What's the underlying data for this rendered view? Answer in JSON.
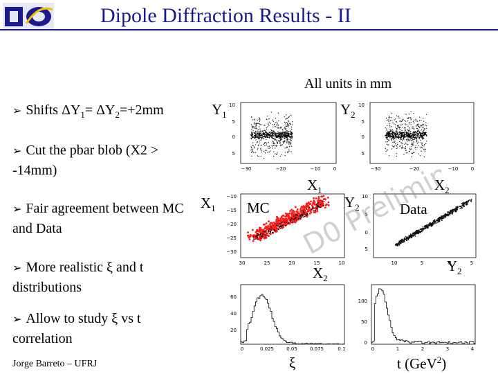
{
  "title": "Dipole Diffraction  Results - II",
  "units_note": "All units in mm",
  "bullets": {
    "b1_pre": "Shifts ΔY",
    "b1_s1": "1",
    "b1_mid": "= ΔY",
    "b1_s2": "2",
    "b1_post": "=+2mm",
    "b2": "Cut the pbar blob (X2 > -14mm)",
    "b3": "Fair agreement between MC and Data",
    "b4": "More realistic ξ and t distributions",
    "b5": "Allow to study ξ vs t correlation"
  },
  "plot_labels": {
    "y1_base": "Y",
    "y1_sub": "1",
    "y2_base": "Y",
    "y2_sub": "2",
    "x1_base": "X",
    "x1_sub": "1",
    "x1b_base": "X",
    "x1b_sub": "1",
    "x2_base": "X",
    "x2_sub": "2",
    "x2b_base": "X",
    "x2b_sub": "2",
    "y2b_base": "Y",
    "y2b_sub": "2",
    "y2c_base": "Y",
    "y2c_sub": "2",
    "mc": "MC",
    "data": "Data",
    "xi": "ξ",
    "t_base": "t (GeV",
    "t_sup": "2",
    "t_end": ")"
  },
  "watermark": "D0 Preliminary",
  "footer": "Jorge Barreto – UFRJ",
  "colors": {
    "title": "#1a1a8c",
    "mc": "#ff1a1a"
  },
  "ticks": {
    "p1_y": [
      "10",
      "5",
      "0",
      "5"
    ],
    "p1_x": [
      "−30",
      "−20",
      "−10",
      "0"
    ],
    "p2_y": [
      "10",
      "5",
      "0",
      "5"
    ],
    "p2_x": [
      "−30",
      "−20",
      "−10",
      "0"
    ],
    "p3_y": [
      "−10",
      "−15",
      "−20",
      "−25",
      "−30"
    ],
    "p3_x": [
      "30",
      "25",
      "20",
      "15",
      "10"
    ],
    "p4_y": [
      "10",
      "5",
      "0",
      "5"
    ],
    "p4_x": [
      "10",
      "5",
      "0",
      "5"
    ],
    "p5_y": [
      "60",
      "40",
      "20"
    ],
    "p5_x": [
      "0",
      "0.025",
      "0.05",
      "0.075",
      "0.1"
    ],
    "p6_y": [
      "100",
      "50",
      "0"
    ],
    "p6_x": [
      "0",
      "1",
      "2",
      "3",
      "4"
    ]
  }
}
